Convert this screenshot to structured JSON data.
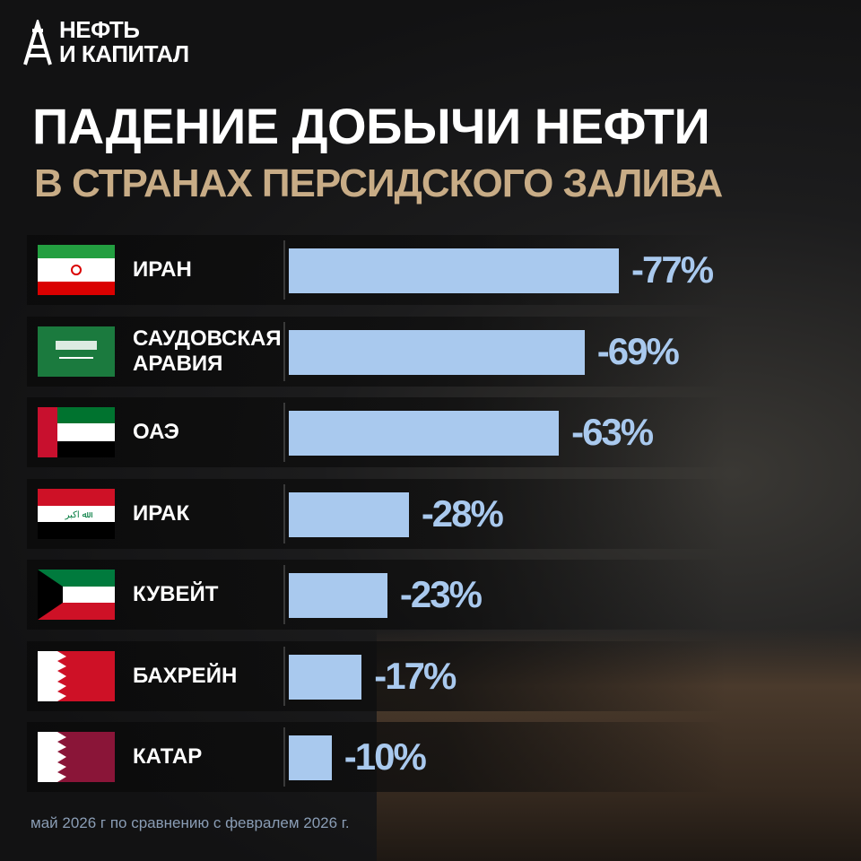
{
  "chart_data": {
    "type": "bar",
    "orientation": "horizontal",
    "logo": [
      "НЕФТЬ",
      "И КАПИТАЛ"
    ],
    "title": "ПАДЕНИЕ ДОБЫЧИ НЕФТИ",
    "subtitle": "В СТРАНАХ ПЕРСИДСКОГО ЗАЛИВА",
    "categories": [
      "ИРАН",
      "САУДОВСКАЯ АРАВИЯ",
      "ОАЭ",
      "ИРАК",
      "КУВЕЙТ",
      "БАХРЕЙН",
      "КАТАР"
    ],
    "values": [
      -77,
      -69,
      -63,
      -28,
      -23,
      -17,
      -10
    ],
    "value_labels": [
      "-77%",
      "-69%",
      "-63%",
      "-28%",
      "-23%",
      "-17%",
      "-10%"
    ],
    "color": "#a9c9ee",
    "note": "май 2026 г по сравнению с февралем 2026 г."
  }
}
